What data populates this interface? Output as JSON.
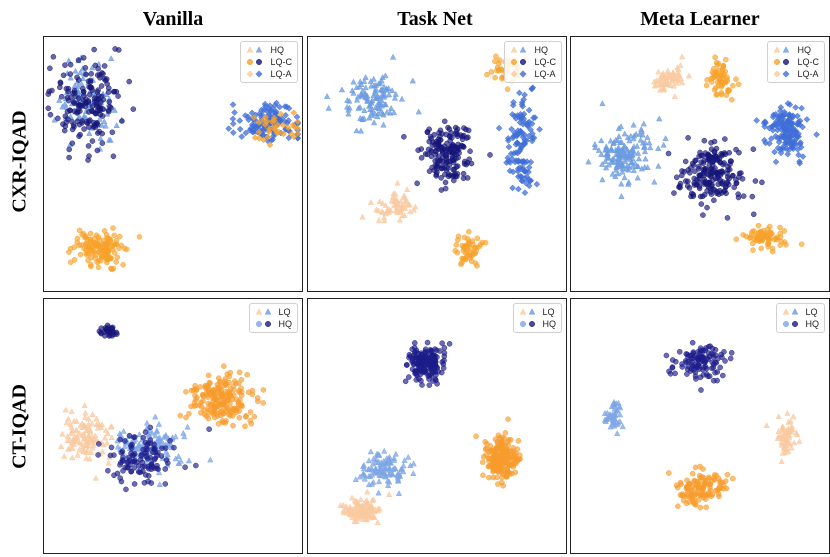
{
  "column_titles": [
    "Vanilla",
    "Task Net",
    "Meta Learner"
  ],
  "row_titles": [
    "CXR-IQAD",
    "CT-IQAD"
  ],
  "colors": {
    "hq_cxr": "#6b9be0",
    "lqc_cxr": "#f8a12a",
    "lqa_cxr": "#3f6ed8",
    "lq_ct": "#f9c9a0",
    "hq_ct": "#1c1c8a",
    "dark_navy": "#15157a",
    "light_blue_ct": "#7ea6e6",
    "ct_orange": "#f79b2c"
  },
  "chart_data": [
    {
      "type": "scatter",
      "panel": "CXR-IQAD / Vanilla",
      "legend": [
        "HQ",
        "LQ-C",
        "LQ-A"
      ],
      "clusters": [
        {
          "series": "HQ",
          "shape": "triangle",
          "color": "#6b9be0",
          "cx": -8,
          "cy": 6,
          "sx": 2.5,
          "sy": 3.5,
          "n": 90
        },
        {
          "series": "HQ-dark",
          "shape": "circle",
          "color": "#15157a",
          "cx": -8,
          "cy": 6,
          "sx": 2.8,
          "sy": 3.8,
          "n": 170
        },
        {
          "series": "LQ-C",
          "shape": "circle",
          "color": "#f8a12a",
          "cx": -7,
          "cy": -8,
          "sx": 2.2,
          "sy": 1.6,
          "n": 130
        },
        {
          "series": "LQ-A",
          "shape": "diamond",
          "color": "#3f6ed8",
          "cx": 9,
          "cy": 4,
          "sx": 2.8,
          "sy": 1.6,
          "n": 120
        },
        {
          "series": "LQ-A-orange",
          "shape": "diamond",
          "color": "#f8a12a",
          "cx": 9.5,
          "cy": 3.5,
          "sx": 2.4,
          "sy": 1.4,
          "n": 35
        }
      ]
    },
    {
      "type": "scatter",
      "panel": "CXR-IQAD / Task Net",
      "legend": [
        "HQ",
        "LQ-C",
        "LQ-A"
      ],
      "clusters": [
        {
          "series": "HQ",
          "shape": "triangle",
          "color": "#6b9be0",
          "cx": -6,
          "cy": 6,
          "sx": 2.6,
          "sy": 2.2,
          "n": 110
        },
        {
          "series": "LQ-light",
          "shape": "triangle",
          "color": "#f9c9a0",
          "cx": -4,
          "cy": -4,
          "sx": 1.8,
          "sy": 1.2,
          "n": 60
        },
        {
          "series": "navy",
          "shape": "circle",
          "color": "#15157a",
          "cx": 1,
          "cy": 1,
          "sx": 2.2,
          "sy": 2.4,
          "n": 170
        },
        {
          "series": "LQ-C",
          "shape": "circle",
          "color": "#f8a12a",
          "cx": 3,
          "cy": -8,
          "sx": 1.2,
          "sy": 1.3,
          "n": 50
        },
        {
          "series": "LQ-A",
          "shape": "diamond",
          "color": "#3f6ed8",
          "cx": 8,
          "cy": 2,
          "sx": 1.3,
          "sy": 4.0,
          "n": 120
        },
        {
          "series": "LQ-C-top",
          "shape": "circle",
          "color": "#f8a12a",
          "cx": 6.5,
          "cy": 9,
          "sx": 1.6,
          "sy": 1.0,
          "n": 40
        }
      ]
    },
    {
      "type": "scatter",
      "panel": "CXR-IQAD / Meta Learner",
      "legend": [
        "HQ",
        "LQ-C",
        "LQ-A"
      ],
      "clusters": [
        {
          "series": "HQ",
          "shape": "triangle",
          "color": "#6b9be0",
          "cx": -7,
          "cy": 1,
          "sx": 2.4,
          "sy": 2.6,
          "n": 150
        },
        {
          "series": "LQ-light",
          "shape": "triangle",
          "color": "#f9c9a0",
          "cx": -3,
          "cy": 8,
          "sx": 1.5,
          "sy": 1.2,
          "n": 60
        },
        {
          "series": "navy",
          "shape": "circle",
          "color": "#15157a",
          "cx": 1,
          "cy": -1,
          "sx": 2.6,
          "sy": 2.6,
          "n": 200
        },
        {
          "series": "LQ-C-top",
          "shape": "circle",
          "color": "#f8a12a",
          "cx": 2,
          "cy": 8,
          "sx": 1.3,
          "sy": 1.6,
          "n": 60
        },
        {
          "series": "LQ-A",
          "shape": "diamond",
          "color": "#3f6ed8",
          "cx": 8,
          "cy": 3,
          "sx": 1.6,
          "sy": 2.2,
          "n": 140
        },
        {
          "series": "LQ-C",
          "shape": "circle",
          "color": "#f8a12a",
          "cx": 6,
          "cy": -7,
          "sx": 1.8,
          "sy": 1.1,
          "n": 70
        }
      ]
    },
    {
      "type": "scatter",
      "panel": "CT-IQAD / Vanilla",
      "legend": [
        "LQ",
        "HQ"
      ],
      "clusters": [
        {
          "series": "navy-top",
          "shape": "circle",
          "color": "#15157a",
          "cx": -6,
          "cy": 9,
          "sx": 0.7,
          "sy": 0.6,
          "n": 30
        },
        {
          "series": "LQ",
          "shape": "triangle",
          "color": "#f9c9a0",
          "cx": -8,
          "cy": -1,
          "sx": 2.0,
          "sy": 2.2,
          "n": 110
        },
        {
          "series": "HQ-light",
          "shape": "triangle",
          "color": "#7ea6e6",
          "cx": -2,
          "cy": -2,
          "sx": 3.0,
          "sy": 2.0,
          "n": 110
        },
        {
          "series": "HQ",
          "shape": "circle",
          "color": "#1c1c8a",
          "cx": -3,
          "cy": -3,
          "sx": 3.0,
          "sy": 2.4,
          "n": 110
        },
        {
          "series": "orange",
          "shape": "circle",
          "color": "#f79b2c",
          "cx": 4.5,
          "cy": 2.5,
          "sx": 2.4,
          "sy": 2.0,
          "n": 200
        }
      ]
    },
    {
      "type": "scatter",
      "panel": "CT-IQAD / Task Net",
      "legend": [
        "LQ",
        "HQ"
      ],
      "clusters": [
        {
          "series": "HQ",
          "shape": "circle",
          "color": "#1c1c8a",
          "cx": -1,
          "cy": 6,
          "sx": 1.5,
          "sy": 1.6,
          "n": 170
        },
        {
          "series": "HQ-light",
          "shape": "triangle",
          "color": "#7ea6e6",
          "cx": -5,
          "cy": -4,
          "sx": 2.0,
          "sy": 1.3,
          "n": 110
        },
        {
          "series": "LQ",
          "shape": "triangle",
          "color": "#f9c9a0",
          "cx": -7,
          "cy": -8,
          "sx": 1.4,
          "sy": 1.0,
          "n": 120
        },
        {
          "series": "orange",
          "shape": "circle",
          "color": "#f79b2c",
          "cx": 6,
          "cy": -3,
          "sx": 1.4,
          "sy": 1.8,
          "n": 200
        }
      ]
    },
    {
      "type": "scatter",
      "panel": "CT-IQAD / Meta Learner",
      "legend": [
        "LQ",
        "HQ"
      ],
      "clusters": [
        {
          "series": "HQ",
          "shape": "circle",
          "color": "#1c1c8a",
          "cx": 0,
          "cy": 6,
          "sx": 2.2,
          "sy": 1.6,
          "n": 110
        },
        {
          "series": "HQ-light",
          "shape": "triangle",
          "color": "#7ea6e6",
          "cx": -8,
          "cy": 1,
          "sx": 0.7,
          "sy": 1.4,
          "n": 45
        },
        {
          "series": "LQ",
          "shape": "triangle",
          "color": "#f9c9a0",
          "cx": 8,
          "cy": -1,
          "sx": 0.9,
          "sy": 1.6,
          "n": 60
        },
        {
          "series": "orange",
          "shape": "circle",
          "color": "#f79b2c",
          "cx": 0,
          "cy": -6,
          "sx": 2.2,
          "sy": 1.6,
          "n": 120
        }
      ]
    }
  ]
}
